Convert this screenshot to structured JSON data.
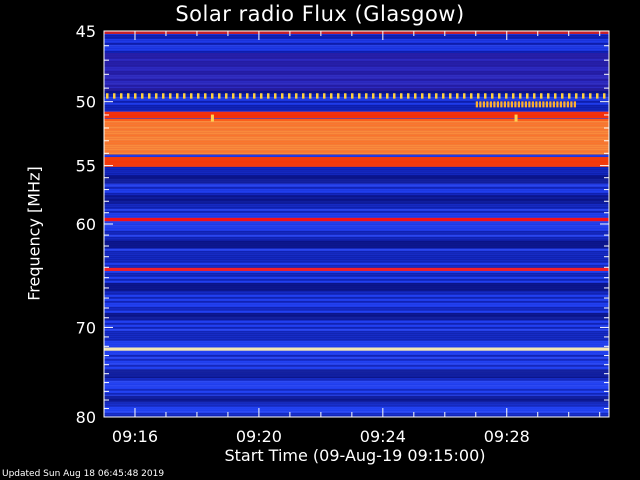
{
  "chart_data": {
    "type": "heatmap",
    "title": "Solar radio Flux (Glasgow)",
    "xlabel": "Start Time (09-Aug-19 09:15:00)",
    "ylabel": "Frequency [MHz]",
    "x_range_minutes": [
      0,
      16.3
    ],
    "x_tick_labels": [
      "09:16",
      "09:20",
      "09:24",
      "09:28"
    ],
    "x_tick_minutes": [
      1,
      5,
      9,
      13
    ],
    "ylim": [
      45,
      80
    ],
    "y_ticks": [
      45,
      50,
      55,
      60,
      70,
      80
    ],
    "y_scale": "log",
    "colormap": "red-temperature",
    "bands": [
      {
        "freq": 45.1,
        "width": 0.2,
        "color": "#d02020"
      },
      {
        "freq": 49.5,
        "width": 0.25,
        "color": "#ffd040",
        "pattern": "dotted"
      },
      {
        "freq": 51.0,
        "width": 0.5,
        "color": "#ff3000"
      },
      {
        "freq": 52.7,
        "width": 2.8,
        "color": "#ff8030"
      },
      {
        "freq": 54.7,
        "width": 0.8,
        "color": "#ff3a00"
      },
      {
        "freq": 59.6,
        "width": 0.3,
        "color": "#ff1010"
      },
      {
        "freq": 64.2,
        "width": 0.3,
        "color": "#ff2020"
      },
      {
        "freq": 72.3,
        "width": 0.35,
        "color": "#fff0b0"
      }
    ],
    "bursts": [
      {
        "t_start": 12.0,
        "t_end": 15.2,
        "freq": 50.2,
        "color": "#ffb030"
      },
      {
        "t": 3.5,
        "freq": 51.2,
        "color": "#ffd050"
      },
      {
        "t": 13.3,
        "freq": 51.2,
        "color": "#ffd050"
      }
    ]
  },
  "footer": {
    "updated": "Updated Sun Aug 18 06:45:48 2019"
  }
}
